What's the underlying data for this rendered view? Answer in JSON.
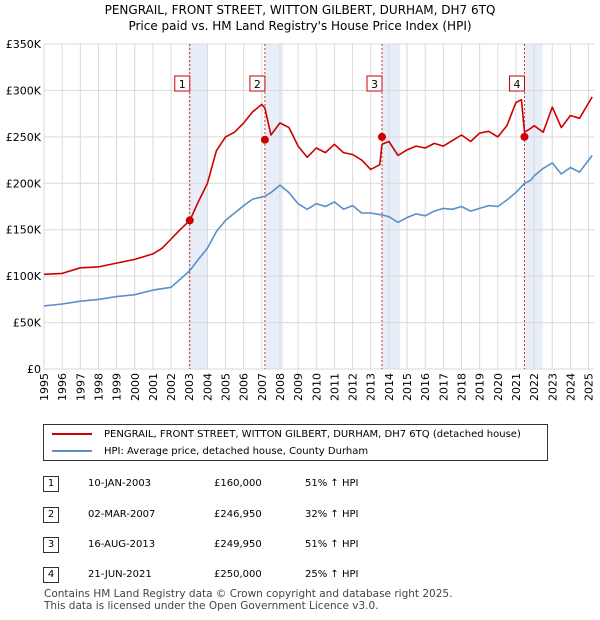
{
  "chart_data": {
    "type": "line",
    "title": "PENGRAIL, FRONT STREET, WITTON GILBERT, DURHAM, DH7 6TQ",
    "subtitle": "Price paid vs. HM Land Registry's House Price Index (HPI)",
    "xlim": [
      1995,
      2025.3
    ],
    "ylim": [
      0,
      350000
    ],
    "y_ticks": [
      {
        "value": 0,
        "label": "£0"
      },
      {
        "value": 50000,
        "label": "£50K"
      },
      {
        "value": 100000,
        "label": "£100K"
      },
      {
        "value": 150000,
        "label": "£150K"
      },
      {
        "value": 200000,
        "label": "£200K"
      },
      {
        "value": 250000,
        "label": "£250K"
      },
      {
        "value": 300000,
        "label": "£300K"
      },
      {
        "value": 350000,
        "label": "£350K"
      }
    ],
    "x_ticks": [
      "1995",
      "1996",
      "1997",
      "1998",
      "1999",
      "2000",
      "2001",
      "2002",
      "2003",
      "2004",
      "2005",
      "2006",
      "2007",
      "2008",
      "2009",
      "2010",
      "2011",
      "2012",
      "2013",
      "2014",
      "2015",
      "2016",
      "2017",
      "2018",
      "2019",
      "2020",
      "2021",
      "2022",
      "2023",
      "2024",
      "2025"
    ],
    "series": [
      {
        "name": "PENGRAIL, FRONT STREET, WITTON GILBERT, DURHAM, DH7 6TQ (detached house)",
        "color": "#cc0000",
        "x": [
          1995,
          1996,
          1997,
          1998,
          1999,
          2000,
          2001,
          2001.5,
          2002,
          2002.5,
          2003.03,
          2003.5,
          2004,
          2004.5,
          2005,
          2005.5,
          2006,
          2006.5,
          2007.0,
          2007.17,
          2007.5,
          2008,
          2008.5,
          2009,
          2009.5,
          2010,
          2010.5,
          2011,
          2011.5,
          2012,
          2012.5,
          2013,
          2013.5,
          2013.62,
          2014,
          2014.5,
          2015,
          2015.5,
          2016,
          2016.5,
          2017,
          2017.5,
          2018,
          2018.5,
          2019,
          2019.5,
          2020,
          2020.5,
          2021.0,
          2021.3,
          2021.47,
          2021.8,
          2022,
          2022.5,
          2023,
          2023.5,
          2024,
          2024.5,
          2025.2
        ],
        "values": [
          102000,
          103000,
          109000,
          110000,
          114000,
          118000,
          124000,
          130000,
          140000,
          150000,
          160000,
          180000,
          200000,
          235000,
          250000,
          255000,
          265000,
          277000,
          285000,
          281000,
          252000,
          265000,
          260000,
          240000,
          228000,
          238000,
          233000,
          242000,
          233000,
          231000,
          225000,
          215000,
          220000,
          242000,
          245000,
          230000,
          236000,
          240000,
          238000,
          243000,
          240000,
          246000,
          252000,
          245000,
          254000,
          256000,
          250000,
          262000,
          287000,
          290000,
          255000,
          259000,
          262000,
          255000,
          282000,
          260000,
          273000,
          270000,
          293000
        ]
      },
      {
        "name": "HPI: Average price, detached house, County Durham",
        "color": "#5b8fc7",
        "x": [
          1995,
          1996,
          1997,
          1998,
          1999,
          2000,
          2001,
          2002,
          2003.03,
          2003.5,
          2004,
          2004.5,
          2005,
          2005.5,
          2006,
          2006.5,
          2007.17,
          2007.5,
          2008,
          2008.5,
          2009,
          2009.5,
          2010,
          2010.5,
          2011,
          2011.5,
          2012,
          2012.5,
          2013,
          2013.62,
          2014,
          2014.5,
          2015,
          2015.5,
          2016,
          2016.5,
          2017,
          2017.5,
          2018,
          2018.5,
          2019,
          2019.5,
          2020,
          2020.5,
          2021.0,
          2021.47,
          2021.8,
          2022,
          2022.5,
          2023,
          2023.5,
          2024,
          2024.5,
          2025.2
        ],
        "values": [
          68000,
          70000,
          73000,
          75000,
          78000,
          80000,
          85000,
          88000,
          106000,
          118000,
          130000,
          148000,
          160000,
          168000,
          176000,
          183000,
          186000,
          190000,
          198000,
          190000,
          178000,
          172000,
          178000,
          175000,
          180000,
          172000,
          176000,
          168000,
          168000,
          166000,
          164000,
          158000,
          163000,
          167000,
          165000,
          170000,
          173000,
          172000,
          175000,
          170000,
          173000,
          176000,
          175000,
          182000,
          190000,
          200000,
          203000,
          208000,
          216000,
          222000,
          210000,
          217000,
          212000,
          230000
        ]
      }
    ],
    "sales": [
      {
        "id": "1",
        "year": 2003.03,
        "price": 160000,
        "date": "10-JAN-2003",
        "price_label": "£160,000",
        "hpi": "51% ↑ HPI"
      },
      {
        "id": "2",
        "year": 2007.17,
        "price": 246950,
        "date": "02-MAR-2007",
        "price_label": "£246,950",
        "hpi": "32% ↑ HPI"
      },
      {
        "id": "3",
        "year": 2013.62,
        "price": 249950,
        "date": "16-AUG-2013",
        "price_label": "£249,950",
        "hpi": "51% ↑ HPI"
      },
      {
        "id": "4",
        "year": 2021.47,
        "price": 250000,
        "date": "21-JUN-2021",
        "price_label": "£250,000",
        "hpi": "25% ↑ HPI"
      }
    ]
  },
  "legend": {
    "red_label": "PENGRAIL, FRONT STREET, WITTON GILBERT, DURHAM, DH7 6TQ (detached house)",
    "blue_label": "HPI: Average price, detached house, County Durham"
  },
  "footer": {
    "line1": "Contains HM Land Registry data © Crown copyright and database right 2025.",
    "line2": "This data is licensed under the Open Government Licence v3.0."
  }
}
